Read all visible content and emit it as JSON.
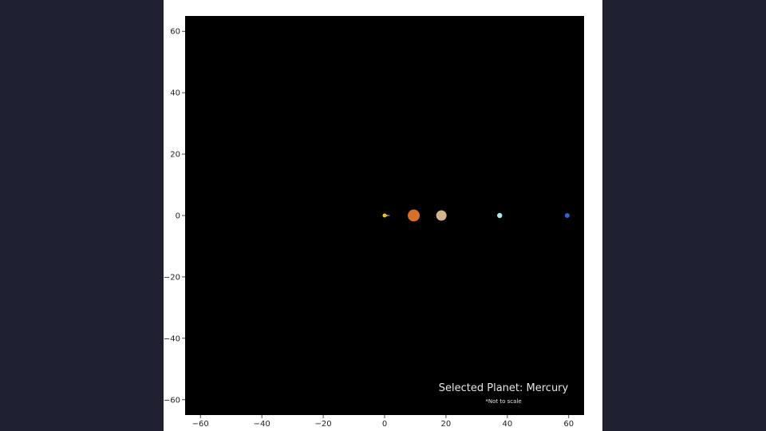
{
  "app": {
    "background": "#1f2133",
    "figure_background": "#ffffff"
  },
  "chart_data": {
    "type": "scatter",
    "title": "",
    "xlabel": "",
    "ylabel": "",
    "xlim": [
      -65,
      65
    ],
    "ylim": [
      -65,
      65
    ],
    "xticks": [
      -60,
      -40,
      -20,
      0,
      20,
      40,
      60
    ],
    "yticks": [
      -60,
      -40,
      -20,
      0,
      20,
      40,
      60
    ],
    "xtick_labels": [
      "−60",
      "−40",
      "−20",
      "0",
      "20",
      "40",
      "60"
    ],
    "ytick_labels": [
      "−60",
      "−40",
      "−20",
      "0",
      "20",
      "40",
      "60"
    ],
    "grid": false,
    "plot_background": "#000000",
    "series": [
      {
        "x": 0,
        "y": 0,
        "color": "#f5c518",
        "marker_size": 2.5
      },
      {
        "x": 0.4,
        "y": 0,
        "color": "#a0a0a0",
        "marker_size": 0.9
      },
      {
        "x": 0.7,
        "y": 0,
        "color": "#e8c070",
        "marker_size": 1.1
      },
      {
        "x": 1.0,
        "y": 0,
        "color": "#4a7fd6",
        "marker_size": 1.1
      },
      {
        "x": 1.5,
        "y": 0,
        "color": "#c1440e",
        "marker_size": 0.9
      },
      {
        "x": 9.5,
        "y": 0,
        "color": "#d8702a",
        "marker_size": 7.5
      },
      {
        "x": 18.5,
        "y": 0,
        "color": "#d2b48c",
        "marker_size": 6.5
      },
      {
        "x": 37.5,
        "y": 0,
        "color": "#aee8ee",
        "marker_size": 3.2
      },
      {
        "x": 59.5,
        "y": 0,
        "color": "#3a5fd0",
        "marker_size": 3.0
      }
    ],
    "annotations": {
      "selected": "Selected Planet: Mercury",
      "note": "*Not to scale"
    }
  }
}
